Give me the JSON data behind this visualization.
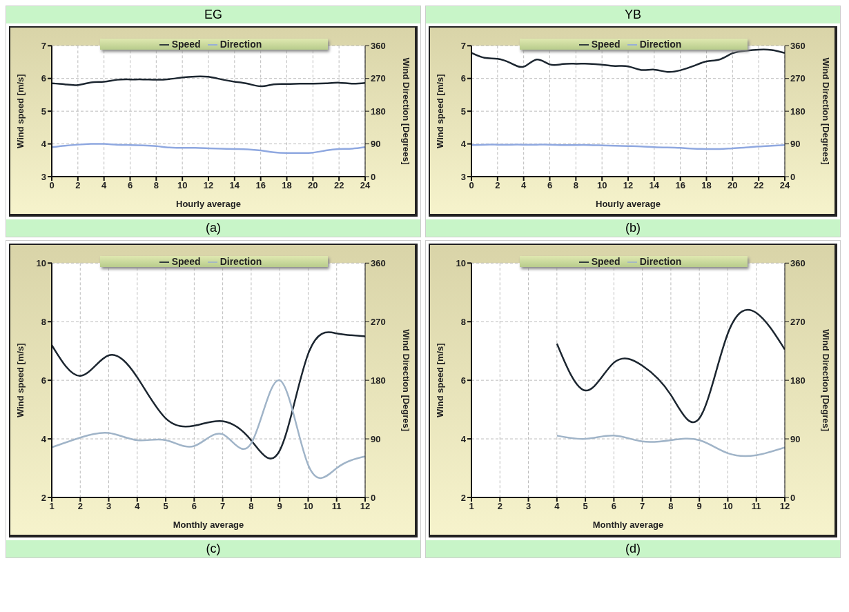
{
  "chart_data": [
    {
      "type": "line",
      "title": "EG",
      "xlabel": "Hourly average",
      "ylabel": "Wind speed [m/s]",
      "y2label": "Wind Direction [Degrees]",
      "annotations": [
        "(a)"
      ],
      "x": [
        0,
        1,
        2,
        3,
        4,
        5,
        6,
        7,
        8,
        9,
        10,
        11,
        12,
        13,
        14,
        15,
        16,
        17,
        18,
        19,
        20,
        21,
        22,
        23,
        24
      ],
      "xlim": [
        0,
        24
      ],
      "xticks": [
        0,
        2,
        4,
        6,
        8,
        10,
        12,
        14,
        16,
        18,
        20,
        22,
        24
      ],
      "ylim": [
        3,
        7
      ],
      "yticks": [
        3,
        4,
        5,
        6,
        7
      ],
      "y2lim": [
        0,
        360
      ],
      "y2ticks": [
        0,
        90,
        180,
        270,
        360
      ],
      "grid": true,
      "legend": "top",
      "marker": "none",
      "line_style": "solid",
      "series": [
        {
          "name": "Speed",
          "color": "#1c2630",
          "values": [
            5.85,
            5.82,
            5.8,
            5.88,
            5.9,
            5.96,
            5.97,
            5.97,
            5.96,
            5.98,
            6.03,
            6.06,
            6.05,
            5.97,
            5.9,
            5.84,
            5.76,
            5.82,
            5.83,
            5.84,
            5.84,
            5.85,
            5.87,
            5.84,
            5.86
          ]
        },
        {
          "name": "Direction",
          "color": "#8fa8e0",
          "axis": "y2",
          "values": [
            81,
            85,
            88,
            90,
            90,
            88,
            87,
            86,
            84,
            80,
            79,
            79,
            78,
            77,
            76,
            75,
            72,
            67,
            65,
            65,
            66,
            72,
            76,
            77,
            81
          ]
        }
      ]
    },
    {
      "type": "line",
      "title": "YB",
      "xlabel": "Hourly average",
      "ylabel": "Wind speed [m/s]",
      "y2label": "Wind Direction [Degrees]",
      "annotations": [
        "(b)"
      ],
      "x": [
        0,
        1,
        2,
        3,
        4,
        5,
        6,
        7,
        8,
        9,
        10,
        11,
        12,
        13,
        14,
        15,
        16,
        17,
        18,
        19,
        20,
        21,
        22,
        23,
        24
      ],
      "xlim": [
        0,
        24
      ],
      "xticks": [
        0,
        2,
        4,
        6,
        8,
        10,
        12,
        14,
        16,
        18,
        20,
        22,
        24
      ],
      "ylim": [
        3,
        7
      ],
      "yticks": [
        3,
        4,
        5,
        6,
        7
      ],
      "y2lim": [
        0,
        360
      ],
      "y2ticks": [
        0,
        90,
        180,
        270,
        360
      ],
      "grid": true,
      "legend": "top",
      "marker": "none",
      "line_style": "solid",
      "series": [
        {
          "name": "Speed",
          "color": "#1c2630",
          "values": [
            6.78,
            6.63,
            6.6,
            6.47,
            6.36,
            6.58,
            6.43,
            6.44,
            6.45,
            6.45,
            6.42,
            6.38,
            6.37,
            6.26,
            6.27,
            6.2,
            6.25,
            6.38,
            6.52,
            6.58,
            6.77,
            6.85,
            6.88,
            6.87,
            6.78
          ]
        },
        {
          "name": "Direction",
          "color": "#8fa8e0",
          "axis": "y2",
          "values": [
            87,
            88,
            88,
            88,
            88,
            88,
            88,
            87,
            87,
            87,
            86,
            85,
            84,
            83,
            81,
            80,
            79,
            77,
            76,
            76,
            78,
            80,
            83,
            85,
            87
          ]
        }
      ]
    },
    {
      "type": "line",
      "xlabel": "Monthly average",
      "ylabel": "Wind speed [m/s]",
      "y2label": "Wind Direction [Degres]",
      "annotations": [
        "(c)"
      ],
      "x": [
        1,
        2,
        3,
        4,
        5,
        6,
        7,
        8,
        9,
        10,
        11,
        12
      ],
      "xlim": [
        1,
        12
      ],
      "xticks": [
        1,
        2,
        3,
        4,
        5,
        6,
        7,
        8,
        9,
        10,
        11,
        12
      ],
      "ylim": [
        2,
        10
      ],
      "yticks": [
        2,
        4,
        6,
        8,
        10
      ],
      "y2lim": [
        0,
        360
      ],
      "y2ticks": [
        0,
        90,
        180,
        270,
        360
      ],
      "grid": true,
      "legend": "top",
      "marker": "none",
      "line_style": "solid",
      "series": [
        {
          "name": "Speed",
          "color": "#1c2630",
          "values": [
            7.2,
            6.15,
            6.85,
            6.1,
            4.7,
            4.45,
            4.6,
            3.95,
            3.6,
            6.9,
            7.6,
            7.5
          ]
        },
        {
          "name": "Direction",
          "color": "#a0b4c8",
          "axis": "y2",
          "values": [
            77,
            92,
            99,
            88,
            88,
            79,
            97,
            83,
            180,
            50,
            45,
            63
          ]
        }
      ]
    },
    {
      "type": "line",
      "xlabel": "Monthly average",
      "ylabel": "Wind speed [m/s]",
      "y2label": "Wind Direction [Degres]",
      "annotations": [
        "(d)"
      ],
      "x": [
        4,
        5,
        6,
        7,
        8,
        9,
        10,
        11,
        12
      ],
      "xlim": [
        1,
        12
      ],
      "xticks": [
        1,
        2,
        3,
        4,
        5,
        6,
        7,
        8,
        9,
        10,
        11,
        12
      ],
      "ylim": [
        2,
        10
      ],
      "yticks": [
        2,
        4,
        6,
        8,
        10
      ],
      "y2lim": [
        0,
        360
      ],
      "y2ticks": [
        0,
        90,
        180,
        270,
        360
      ],
      "grid": true,
      "legend": "top",
      "marker": "none",
      "line_style": "solid",
      "series": [
        {
          "name": "Speed",
          "color": "#1c2630",
          "values": [
            7.25,
            5.65,
            6.6,
            6.5,
            5.5,
            4.7,
            7.6,
            8.3,
            7.05
          ]
        },
        {
          "name": "Direction",
          "color": "#a0b4c8",
          "axis": "y2",
          "values": [
            95,
            90,
            95,
            86,
            88,
            88,
            68,
            65,
            77
          ]
        }
      ]
    }
  ]
}
